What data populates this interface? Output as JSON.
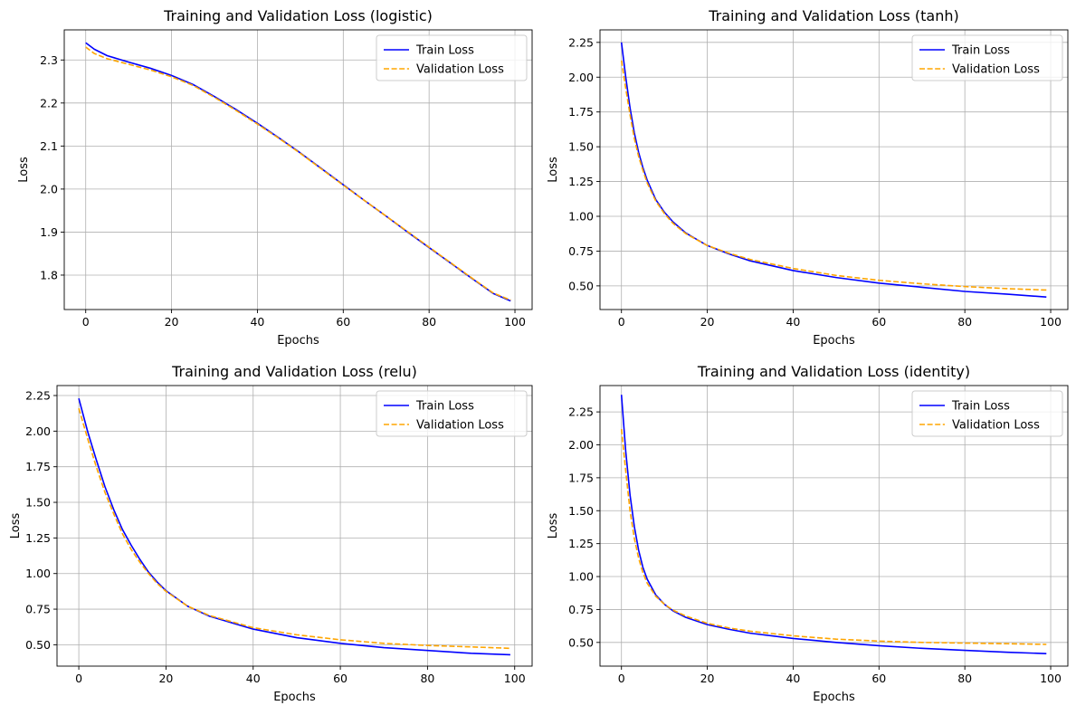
{
  "colors": {
    "train": "#0000ff",
    "validation": "#ffa500",
    "grid": "#b0b0b0"
  },
  "chart_data": [
    {
      "type": "line",
      "title": "Training and Validation Loss (logistic)",
      "xlabel": "Epochs",
      "ylabel": "Loss",
      "xlim": [
        -5,
        104
      ],
      "ylim": [
        1.72,
        2.37
      ],
      "xticks": [
        0,
        20,
        40,
        60,
        80,
        100
      ],
      "yticks": [
        1.8,
        1.9,
        2.0,
        2.1,
        2.2,
        2.3
      ],
      "ytick_labels": [
        "1.8",
        "1.9",
        "2.0",
        "2.1",
        "2.2",
        "2.3"
      ],
      "grid": true,
      "legend": "top-right",
      "series": [
        {
          "name": "Train Loss",
          "style": "solid",
          "x": [
            0,
            2,
            5,
            10,
            15,
            20,
            25,
            30,
            35,
            40,
            45,
            50,
            55,
            60,
            65,
            70,
            75,
            80,
            85,
            90,
            95,
            99
          ],
          "y": [
            2.34,
            2.325,
            2.31,
            2.295,
            2.281,
            2.264,
            2.243,
            2.215,
            2.185,
            2.153,
            2.119,
            2.084,
            2.047,
            2.01,
            1.973,
            1.937,
            1.9,
            1.864,
            1.828,
            1.792,
            1.757,
            1.74
          ]
        },
        {
          "name": "Validation Loss",
          "style": "dashed",
          "x": [
            0,
            2,
            5,
            10,
            15,
            20,
            25,
            30,
            35,
            40,
            45,
            50,
            55,
            60,
            65,
            70,
            75,
            80,
            85,
            90,
            95,
            99
          ],
          "y": [
            2.33,
            2.315,
            2.303,
            2.29,
            2.277,
            2.261,
            2.241,
            2.213,
            2.183,
            2.151,
            2.118,
            2.083,
            2.046,
            2.009,
            1.973,
            1.937,
            1.901,
            1.865,
            1.829,
            1.793,
            1.758,
            1.742
          ]
        }
      ]
    },
    {
      "type": "line",
      "title": "Training and Validation Loss (tanh)",
      "xlabel": "Epochs",
      "ylabel": "Loss",
      "xlim": [
        -5,
        104
      ],
      "ylim": [
        0.33,
        2.34
      ],
      "xticks": [
        0,
        20,
        40,
        60,
        80,
        100
      ],
      "yticks": [
        0.5,
        0.75,
        1.0,
        1.25,
        1.5,
        1.75,
        2.0,
        2.25
      ],
      "ytick_labels": [
        "0.50",
        "0.75",
        "1.00",
        "1.25",
        "1.50",
        "1.75",
        "2.00",
        "2.25"
      ],
      "grid": true,
      "legend": "top-right",
      "series": [
        {
          "name": "Train Loss",
          "style": "solid",
          "x": [
            0,
            1,
            2,
            3,
            4,
            5,
            6,
            8,
            10,
            12,
            15,
            20,
            25,
            30,
            40,
            50,
            60,
            70,
            80,
            90,
            99
          ],
          "y": [
            2.25,
            2.0,
            1.78,
            1.6,
            1.46,
            1.35,
            1.26,
            1.12,
            1.03,
            0.96,
            0.88,
            0.79,
            0.73,
            0.68,
            0.61,
            0.56,
            0.52,
            0.49,
            0.46,
            0.44,
            0.42
          ]
        },
        {
          "name": "Validation Loss",
          "style": "dashed",
          "x": [
            0,
            1,
            2,
            3,
            4,
            5,
            6,
            8,
            10,
            12,
            15,
            20,
            25,
            30,
            40,
            50,
            60,
            70,
            80,
            90,
            99
          ],
          "y": [
            2.12,
            1.92,
            1.73,
            1.56,
            1.43,
            1.33,
            1.24,
            1.11,
            1.02,
            0.95,
            0.875,
            0.79,
            0.735,
            0.69,
            0.625,
            0.575,
            0.54,
            0.515,
            0.495,
            0.48,
            0.47
          ]
        }
      ]
    },
    {
      "type": "line",
      "title": "Training and Validation Loss (relu)",
      "xlabel": "Epochs",
      "ylabel": "Loss",
      "xlim": [
        -5,
        104
      ],
      "ylim": [
        0.35,
        2.32
      ],
      "xticks": [
        0,
        20,
        40,
        60,
        80,
        100
      ],
      "yticks": [
        0.5,
        0.75,
        1.0,
        1.25,
        1.5,
        1.75,
        2.0,
        2.25
      ],
      "ytick_labels": [
        "0.50",
        "0.75",
        "1.00",
        "1.25",
        "1.50",
        "1.75",
        "2.00",
        "2.25"
      ],
      "grid": true,
      "legend": "top-right",
      "series": [
        {
          "name": "Train Loss",
          "style": "solid",
          "x": [
            0,
            2,
            4,
            6,
            8,
            10,
            12,
            14,
            16,
            18,
            20,
            25,
            30,
            40,
            50,
            60,
            70,
            80,
            90,
            99
          ],
          "y": [
            2.23,
            2.0,
            1.8,
            1.61,
            1.45,
            1.31,
            1.2,
            1.1,
            1.01,
            0.94,
            0.88,
            0.77,
            0.7,
            0.61,
            0.55,
            0.51,
            0.48,
            0.46,
            0.44,
            0.43
          ]
        },
        {
          "name": "Validation Loss",
          "style": "dashed",
          "x": [
            0,
            2,
            4,
            6,
            8,
            10,
            12,
            14,
            16,
            18,
            20,
            25,
            30,
            40,
            50,
            60,
            70,
            80,
            90,
            99
          ],
          "y": [
            2.16,
            1.95,
            1.75,
            1.57,
            1.42,
            1.28,
            1.17,
            1.08,
            1.0,
            0.93,
            0.875,
            0.77,
            0.705,
            0.62,
            0.57,
            0.535,
            0.51,
            0.495,
            0.485,
            0.475
          ]
        }
      ]
    },
    {
      "type": "line",
      "title": "Training and Validation Loss (identity)",
      "xlabel": "Epochs",
      "ylabel": "Loss",
      "xlim": [
        -5,
        104
      ],
      "ylim": [
        0.32,
        2.45
      ],
      "xticks": [
        0,
        20,
        40,
        60,
        80,
        100
      ],
      "yticks": [
        0.5,
        0.75,
        1.0,
        1.25,
        1.5,
        1.75,
        2.0,
        2.25
      ],
      "ytick_labels": [
        "0.50",
        "0.75",
        "1.00",
        "1.25",
        "1.50",
        "1.75",
        "2.00",
        "2.25"
      ],
      "grid": true,
      "legend": "top-right",
      "series": [
        {
          "name": "Train Loss",
          "style": "solid",
          "x": [
            0,
            1,
            2,
            3,
            4,
            5,
            6,
            8,
            10,
            12,
            15,
            20,
            25,
            30,
            40,
            50,
            60,
            70,
            80,
            90,
            99
          ],
          "y": [
            2.38,
            1.95,
            1.62,
            1.38,
            1.2,
            1.07,
            0.98,
            0.86,
            0.79,
            0.74,
            0.69,
            0.635,
            0.6,
            0.57,
            0.53,
            0.5,
            0.475,
            0.455,
            0.44,
            0.425,
            0.415
          ]
        },
        {
          "name": "Validation Loss",
          "style": "dashed",
          "x": [
            0,
            1,
            2,
            3,
            4,
            5,
            6,
            8,
            10,
            12,
            15,
            20,
            25,
            30,
            40,
            50,
            60,
            70,
            80,
            90,
            99
          ],
          "y": [
            2.12,
            1.8,
            1.5,
            1.29,
            1.14,
            1.03,
            0.95,
            0.85,
            0.79,
            0.745,
            0.7,
            0.645,
            0.61,
            0.585,
            0.55,
            0.525,
            0.51,
            0.5,
            0.495,
            0.49,
            0.485
          ]
        }
      ]
    }
  ]
}
